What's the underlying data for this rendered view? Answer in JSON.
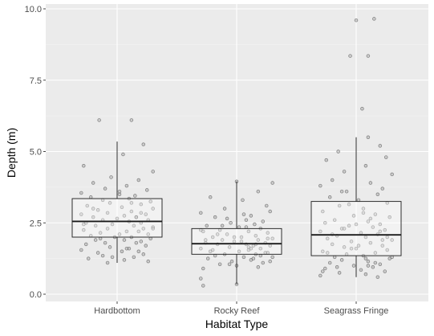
{
  "chart_data": {
    "type": "box",
    "xlabel": "Habitat Type",
    "ylabel": "Depth (m)",
    "ylim": [
      0,
      10
    ],
    "yticks": [
      0.0,
      2.5,
      5.0,
      7.5,
      10.0
    ],
    "ytick_labels": [
      "0.0",
      "2.5",
      "5.0",
      "7.5",
      "10.0"
    ],
    "categories": [
      "Hardbottom",
      "Rocky Reef",
      "Seagrass Fringe"
    ],
    "boxes": [
      {
        "category": "Hardbottom",
        "whisker_low": 1.1,
        "q1": 2.0,
        "median": 2.55,
        "q3": 3.35,
        "whisker_high": 5.35
      },
      {
        "category": "Rocky Reef",
        "whisker_low": 0.35,
        "q1": 1.4,
        "median": 1.77,
        "q3": 2.3,
        "whisker_high": 3.95
      },
      {
        "category": "Seagrass Fringe",
        "whisker_low": 0.6,
        "q1": 1.35,
        "median": 2.08,
        "q3": 3.25,
        "whisker_high": 5.5
      }
    ],
    "points": [
      {
        "category": "Hardbottom",
        "x_offsets": [
          -0.15,
          0.12,
          0.22,
          0.05,
          -0.28,
          0.3,
          -0.05,
          0.18,
          -0.2,
          0.08,
          -0.1,
          0.25,
          -0.3,
          0.02,
          0.15,
          -0.22,
          0.1,
          -0.12,
          0.28,
          -0.06,
          0.2,
          -0.25,
          0.04,
          0.3,
          -0.16,
          0.12,
          -0.08,
          0.24,
          -0.3,
          0.06,
          0.16,
          -0.2,
          0.0,
          0.26,
          -0.12,
          0.1,
          -0.26,
          0.2,
          -0.04,
          0.14,
          -0.18,
          0.3,
          -0.08,
          0.22,
          -0.28,
          0.08,
          0.18,
          -0.14,
          0.02,
          0.26,
          -0.22,
          0.12,
          -0.02,
          0.28,
          -0.18,
          0.06,
          0.2,
          -0.1,
          0.16,
          -0.26,
          0.24,
          -0.06,
          0.1,
          -0.3,
          0.04,
          0.18,
          -0.16,
          0.22,
          -0.12,
          0.14,
          -0.24,
          0.06,
          0.26,
          -0.08,
          0.02,
          -0.2,
          0.16,
          0.3,
          -0.14,
          0.08,
          -0.04,
          0.2,
          -0.28,
          0.12
        ],
        "y": [
          6.1,
          6.1,
          5.25,
          4.9,
          4.5,
          4.3,
          4.1,
          4.0,
          3.9,
          3.8,
          3.7,
          3.65,
          3.55,
          3.5,
          3.45,
          3.4,
          3.35,
          3.3,
          3.25,
          3.2,
          3.15,
          3.1,
          3.05,
          3.0,
          2.95,
          2.9,
          2.85,
          2.8,
          2.8,
          2.75,
          2.7,
          2.7,
          2.65,
          2.6,
          2.6,
          2.55,
          2.5,
          2.5,
          2.45,
          2.4,
          2.4,
          2.35,
          2.3,
          2.3,
          2.25,
          2.2,
          2.2,
          2.15,
          2.1,
          2.1,
          2.05,
          2.0,
          2.0,
          1.95,
          1.9,
          1.9,
          1.85,
          1.8,
          1.8,
          1.75,
          1.7,
          1.65,
          1.6,
          1.55,
          1.5,
          1.5,
          1.45,
          1.4,
          1.35,
          1.3,
          1.25,
          1.2,
          1.15,
          1.1,
          3.6,
          3.0,
          2.7,
          2.3,
          1.95,
          1.6,
          1.3,
          2.85,
          2.45,
          3.2
        ],
        "x_offsets_note": ""
      },
      {
        "category": "Rocky Reef",
        "x_offsets": [
          0.0,
          0.3,
          0.18,
          -0.22,
          0.05,
          0.25,
          -0.1,
          0.28,
          -0.3,
          0.12,
          -0.18,
          0.08,
          0.22,
          -0.05,
          0.15,
          -0.25,
          0.02,
          0.2,
          -0.14,
          0.1,
          -0.28,
          0.26,
          -0.08,
          0.16,
          -0.2,
          0.04,
          0.3,
          -0.12,
          0.18,
          -0.02,
          0.24,
          -0.26,
          0.08,
          -0.16,
          0.14,
          0.28,
          -0.06,
          0.2,
          -0.3,
          0.1,
          -0.22,
          0.02,
          0.26,
          -0.1,
          0.16,
          -0.18,
          0.06,
          0.3,
          -0.24,
          0.12,
          -0.04,
          0.22,
          -0.14,
          0.0,
          0.18,
          -0.28,
          0.08,
          0.26,
          -0.2,
          0.14,
          -0.08,
          0.04,
          0.24,
          -0.16,
          0.1,
          -0.3,
          0.2,
          -0.02,
          0.16,
          -0.12,
          0.28,
          -0.26,
          0.06,
          -0.06,
          -0.3,
          -0.28,
          0.0,
          0.12
        ],
        "y": [
          3.95,
          3.9,
          3.6,
          3.4,
          3.3,
          3.1,
          3.0,
          2.9,
          2.85,
          2.75,
          2.7,
          2.6,
          2.55,
          2.5,
          2.45,
          2.4,
          2.35,
          2.3,
          2.25,
          2.2,
          2.2,
          2.15,
          2.1,
          2.05,
          2.0,
          2.0,
          1.95,
          1.9,
          1.9,
          1.85,
          1.8,
          1.8,
          1.75,
          1.75,
          1.7,
          1.7,
          1.65,
          1.6,
          1.6,
          1.55,
          1.5,
          1.5,
          1.45,
          1.4,
          1.4,
          1.35,
          1.3,
          1.3,
          1.25,
          1.2,
          1.15,
          1.1,
          1.05,
          1.0,
          0.95,
          0.9,
          2.35,
          1.95,
          1.55,
          1.25,
          2.65,
          1.85,
          1.45,
          2.1,
          1.65,
          2.25,
          1.35,
          2.0,
          1.75,
          2.4,
          1.15,
          1.9,
          2.8,
          1.05,
          0.55,
          0.3,
          0.35,
          1.6
        ]
      },
      {
        "category": "Seagrass Fringe",
        "x_offsets": [
          0.0,
          0.15,
          -0.05,
          0.1,
          0.05,
          0.1,
          0.2,
          -0.15,
          0.25,
          -0.25,
          0.08,
          -0.1,
          0.3,
          -0.2,
          0.12,
          -0.3,
          0.22,
          -0.08,
          0.18,
          -0.22,
          0.02,
          0.26,
          -0.14,
          0.06,
          -0.28,
          0.16,
          -0.02,
          0.28,
          -0.18,
          0.1,
          -0.26,
          0.2,
          -0.06,
          0.14,
          -0.12,
          0.24,
          -0.3,
          0.04,
          0.18,
          -0.16,
          0.08,
          -0.24,
          0.3,
          -0.04,
          0.12,
          -0.2,
          0.22,
          -0.1,
          0.0,
          0.26,
          -0.28,
          0.16,
          -0.08,
          0.06,
          -0.18,
          0.28,
          -0.12,
          0.1,
          -0.22,
          0.2,
          -0.02,
          0.14,
          -0.26,
          0.04,
          0.24,
          -0.14,
          0.08,
          -0.3,
          0.18,
          -0.06,
          0.12,
          -0.2,
          0.02,
          0.3,
          -0.16,
          0.06,
          -0.1,
          0.22,
          -0.24,
          0.16,
          0.0,
          -0.04,
          0.1,
          0.26,
          -0.12,
          0.08,
          -0.28,
          0.2
        ],
        "y": [
          9.6,
          9.65,
          8.35,
          8.35,
          6.5,
          5.5,
          5.2,
          5.0,
          4.8,
          4.7,
          4.5,
          4.3,
          4.2,
          4.0,
          3.9,
          3.8,
          3.7,
          3.6,
          3.5,
          3.4,
          3.3,
          3.2,
          3.1,
          3.0,
          2.9,
          2.8,
          2.75,
          2.7,
          2.6,
          2.55,
          2.5,
          2.45,
          2.4,
          2.35,
          2.3,
          2.25,
          2.2,
          2.15,
          2.1,
          2.05,
          2.0,
          1.95,
          1.9,
          1.85,
          1.8,
          1.75,
          1.7,
          1.65,
          1.6,
          1.55,
          1.5,
          1.45,
          1.4,
          1.35,
          1.3,
          1.25,
          1.2,
          1.15,
          1.1,
          1.05,
          1.0,
          0.95,
          0.9,
          0.85,
          0.8,
          0.75,
          0.7,
          0.65,
          0.6,
          3.15,
          2.65,
          2.1,
          1.7,
          1.3,
          0.95,
          2.85,
          2.3,
          1.9,
          1.45,
          1.1,
          2.45,
          1.6,
          1.0,
          2.0,
          3.6,
          1.25,
          0.8,
          2.2
        ]
      }
    ]
  }
}
